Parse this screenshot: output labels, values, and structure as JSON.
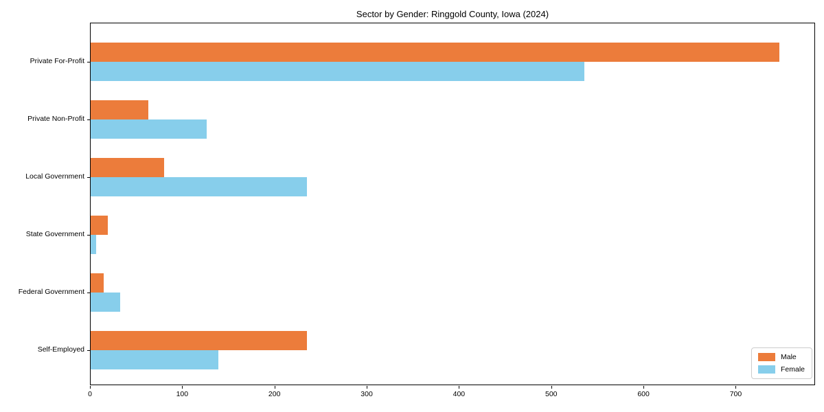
{
  "figure": {
    "title": "Sector by Gender: Ringgold County, Iowa (2024)"
  },
  "chart_data": {
    "type": "bar",
    "orientation": "horizontal",
    "title": "Sector by Gender: Ringgold County, Iowa (2024)",
    "categories": [
      "Private For-Profit",
      "Private Non-Profit",
      "Local Government",
      "State Government",
      "Federal Government",
      "Self-Employed"
    ],
    "series": [
      {
        "name": "Male",
        "color": "#EC7C3B",
        "values": [
          748,
          63,
          80,
          19,
          14,
          235
        ]
      },
      {
        "name": "Female",
        "color": "#87CEEB",
        "values": [
          536,
          126,
          235,
          6,
          32,
          139
        ]
      }
    ],
    "xlabel": "",
    "ylabel": "",
    "xlim": [
      0,
      786
    ],
    "xticks": [
      0,
      100,
      200,
      300,
      400,
      500,
      600,
      700
    ],
    "grid": false,
    "legend": {
      "position": "lower right",
      "entries": [
        "Male",
        "Female"
      ]
    }
  }
}
